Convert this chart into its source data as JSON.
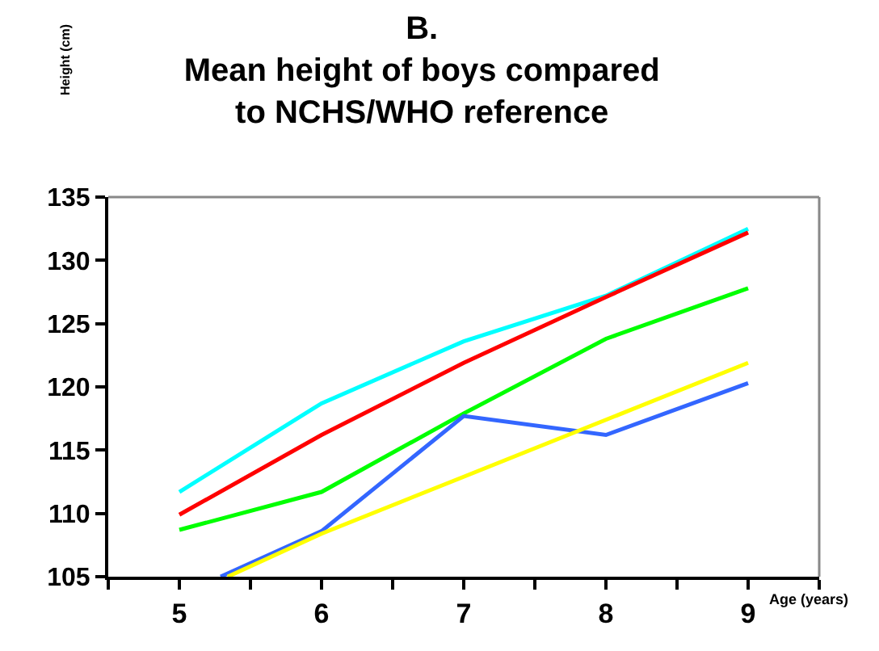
{
  "chart_data": {
    "type": "line",
    "title": "B.\nMean height of boys compared\nto NCHS/WHO reference",
    "annotations": [
      "Height (cm)"
    ],
    "xlabel": "Age (years)",
    "x": [
      5,
      6,
      7,
      8,
      9
    ],
    "xlim": [
      4.5,
      9.5
    ],
    "xticks": [
      {
        "value": 4.5,
        "label": null
      },
      5,
      {
        "value": 5.5,
        "label": null
      },
      6,
      {
        "value": 6.5,
        "label": null
      },
      7,
      {
        "value": 7.5,
        "label": null
      },
      8,
      {
        "value": 8.5,
        "label": null
      },
      9,
      {
        "value": 9.5,
        "label": null
      }
    ],
    "ylim": [
      105,
      135
    ],
    "yticks": [
      105,
      110,
      115,
      120,
      125,
      130,
      135
    ],
    "marker": "none",
    "line_style": "solid",
    "series": [
      {
        "color": "#00ffff",
        "values": [
          111.7,
          118.7,
          123.6,
          127.2,
          132.5
        ]
      },
      {
        "color": "#ff0000",
        "values": [
          109.9,
          116.2,
          121.9,
          127.1,
          132.2
        ]
      },
      {
        "color": "#00ff00",
        "values": [
          108.7,
          111.7,
          117.9,
          123.8,
          127.8
        ]
      },
      {
        "color": "#3366ff",
        "x": [
          5.29,
          6,
          7,
          8,
          9
        ],
        "values": [
          105,
          108.6,
          117.7,
          116.2,
          120.3
        ]
      },
      {
        "color": "#ffff00",
        "x": [
          5.34,
          6,
          7,
          8,
          9
        ],
        "values": [
          105,
          108.4,
          112.9,
          117.4,
          121.9
        ]
      }
    ]
  }
}
